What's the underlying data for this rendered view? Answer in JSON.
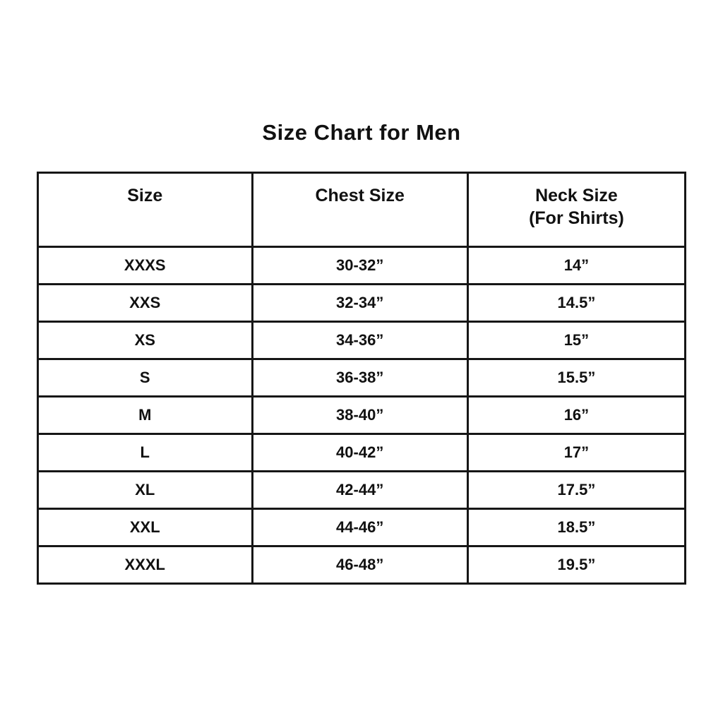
{
  "title": "Size Chart for Men",
  "colors": {
    "background": "#ffffff",
    "text": "#111111",
    "border": "#161616"
  },
  "chart_data": {
    "type": "table",
    "title": "Size Chart for Men",
    "columns": [
      {
        "label": "Size",
        "sublabel": ""
      },
      {
        "label": "Chest Size",
        "sublabel": ""
      },
      {
        "label": "Neck Size",
        "sublabel": "(For Shirts)"
      }
    ],
    "rows": [
      [
        "XXXS",
        "30-32”",
        "14”"
      ],
      [
        "XXS",
        "32-34”",
        "14.5”"
      ],
      [
        "XS",
        "34-36”",
        "15”"
      ],
      [
        "S",
        "36-38”",
        "15.5”"
      ],
      [
        "M",
        "38-40”",
        "16”"
      ],
      [
        "L",
        "40-42”",
        "17”"
      ],
      [
        "XL",
        "42-44”",
        "17.5”"
      ],
      [
        "XXL",
        "44-46”",
        "18.5”"
      ],
      [
        "XXXL",
        "46-48”",
        "19.5”"
      ]
    ]
  }
}
